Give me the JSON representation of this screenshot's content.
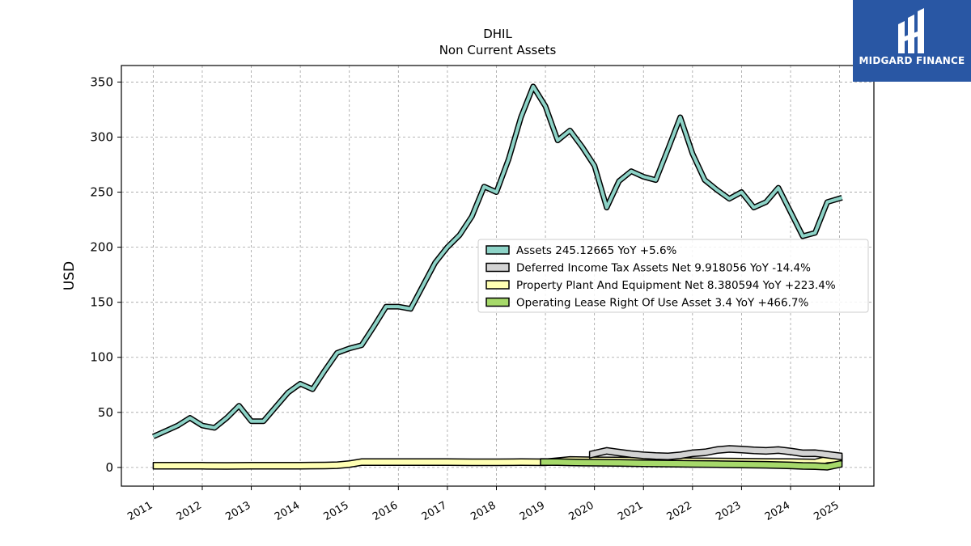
{
  "brand": {
    "name": "MIDGARD FINANCE",
    "bg_color": "#2957a4"
  },
  "chart_data": {
    "type": "area",
    "title": "DHIL",
    "subtitle": "Non Current  Assets",
    "ylabel": "USD",
    "xlabel": "",
    "ylim": [
      -17,
      365
    ],
    "xlim": [
      2010.35,
      2025.7
    ],
    "yticks": [
      0,
      50,
      100,
      150,
      200,
      250,
      300,
      350
    ],
    "xticks": [
      "2011",
      "2012",
      "2013",
      "2014",
      "2015",
      "2016",
      "2017",
      "2018",
      "2019",
      "2020",
      "2021",
      "2022",
      "2023",
      "2024",
      "2025"
    ],
    "grid": true,
    "legend_position": "center-right",
    "series": [
      {
        "name": "Assets",
        "legend_label": "Assets  245.12665 YoY +5.6%",
        "color": "#8dd3c7",
        "x": [
          2011.0,
          2011.25,
          2011.5,
          2011.75,
          2012.0,
          2012.25,
          2012.5,
          2012.75,
          2013.0,
          2013.25,
          2013.5,
          2013.75,
          2014.0,
          2014.25,
          2014.5,
          2014.75,
          2015.0,
          2015.25,
          2015.5,
          2015.75,
          2016.0,
          2016.25,
          2016.5,
          2016.75,
          2017.0,
          2017.25,
          2017.5,
          2017.75,
          2018.0,
          2018.25,
          2018.5,
          2018.75,
          2019.0,
          2019.25,
          2019.5,
          2019.75,
          2020.0,
          2020.25,
          2020.5,
          2020.75,
          2021.0,
          2021.25,
          2021.5,
          2021.75,
          2022.0,
          2022.25,
          2022.5,
          2022.75,
          2023.0,
          2023.25,
          2023.5,
          2023.75,
          2024.0,
          2024.25,
          2024.5,
          2024.75,
          2025.05
        ],
        "values": [
          28,
          33,
          38,
          45,
          38,
          36,
          45,
          56,
          42,
          42,
          55,
          68,
          76,
          71,
          88,
          104,
          108,
          111,
          128,
          146,
          146,
          144,
          165,
          186,
          200,
          211,
          228,
          255,
          250,
          280,
          318,
          346,
          328,
          297,
          306,
          291,
          274,
          236,
          260,
          269,
          264,
          261,
          289,
          318,
          285,
          261,
          252,
          244,
          250,
          236,
          241,
          254,
          232,
          210,
          213,
          241,
          245
        ]
      },
      {
        "name": "Deferred Income Tax Assets Net",
        "legend_label": "Deferred Income Tax Assets Net  9.918056 YoY -14.4%",
        "color": "#d3d3d3",
        "x": [
          2019.9,
          2020.25,
          2020.5,
          2020.75,
          2021.0,
          2021.25,
          2021.5,
          2021.75,
          2022.0,
          2022.25,
          2022.5,
          2022.75,
          2023.0,
          2023.25,
          2023.5,
          2023.75,
          2024.0,
          2024.25,
          2024.5,
          2024.75,
          2025.05
        ],
        "values": [
          11.5,
          15,
          13.5,
          12,
          11,
          10.3,
          10,
          11,
          12.8,
          13.6,
          15.8,
          16.8,
          16.3,
          15.5,
          15,
          15.8,
          14.5,
          12.8,
          13,
          11.6,
          9.9
        ]
      },
      {
        "name": "Property Plant And Equipment Net",
        "legend_label": "Property Plant And Equipment Net  8.380594 YoY +223.4%",
        "color": "#ffffb3",
        "x": [
          2011.0,
          2011.5,
          2012.0,
          2012.5,
          2013.0,
          2013.5,
          2014.0,
          2014.5,
          2014.75,
          2015.0,
          2015.25,
          2015.5,
          2016.0,
          2016.5,
          2017.0,
          2017.5,
          2018.0,
          2018.5,
          2019.0,
          2019.5,
          2020.0,
          2020.5,
          2021.0,
          2021.5,
          2022.0,
          2022.5,
          2023.0,
          2023.5,
          2024.0,
          2024.5,
          2024.75,
          2025.05
        ],
        "values": [
          1.5,
          1.5,
          1.5,
          1.4,
          1.5,
          1.6,
          1.6,
          1.7,
          2,
          3,
          4.8,
          4.9,
          4.9,
          4.9,
          4.8,
          4.7,
          4.7,
          4.8,
          4.7,
          6.8,
          6.4,
          6.3,
          6,
          5.8,
          5.6,
          5.4,
          5.2,
          5,
          4.8,
          4.5,
          7.2,
          8.4
        ]
      },
      {
        "name": "Operating Lease Right Of Use Asset",
        "legend_label": "Operating Lease Right Of Use Asset  3.4 YoY +466.7%",
        "color": "#a6d96a",
        "x": [
          2018.9,
          2019.25,
          2019.5,
          2019.75,
          2020.0,
          2020.5,
          2021.0,
          2021.5,
          2022.0,
          2022.5,
          2023.0,
          2023.5,
          2024.0,
          2024.25,
          2024.5,
          2024.75,
          2025.05
        ],
        "values": [
          5,
          4.8,
          4.6,
          4.4,
          4.3,
          4.1,
          3.8,
          3.5,
          3.2,
          3,
          2.7,
          2.4,
          1.8,
          1.4,
          1.2,
          0.6,
          3.4
        ]
      }
    ]
  }
}
